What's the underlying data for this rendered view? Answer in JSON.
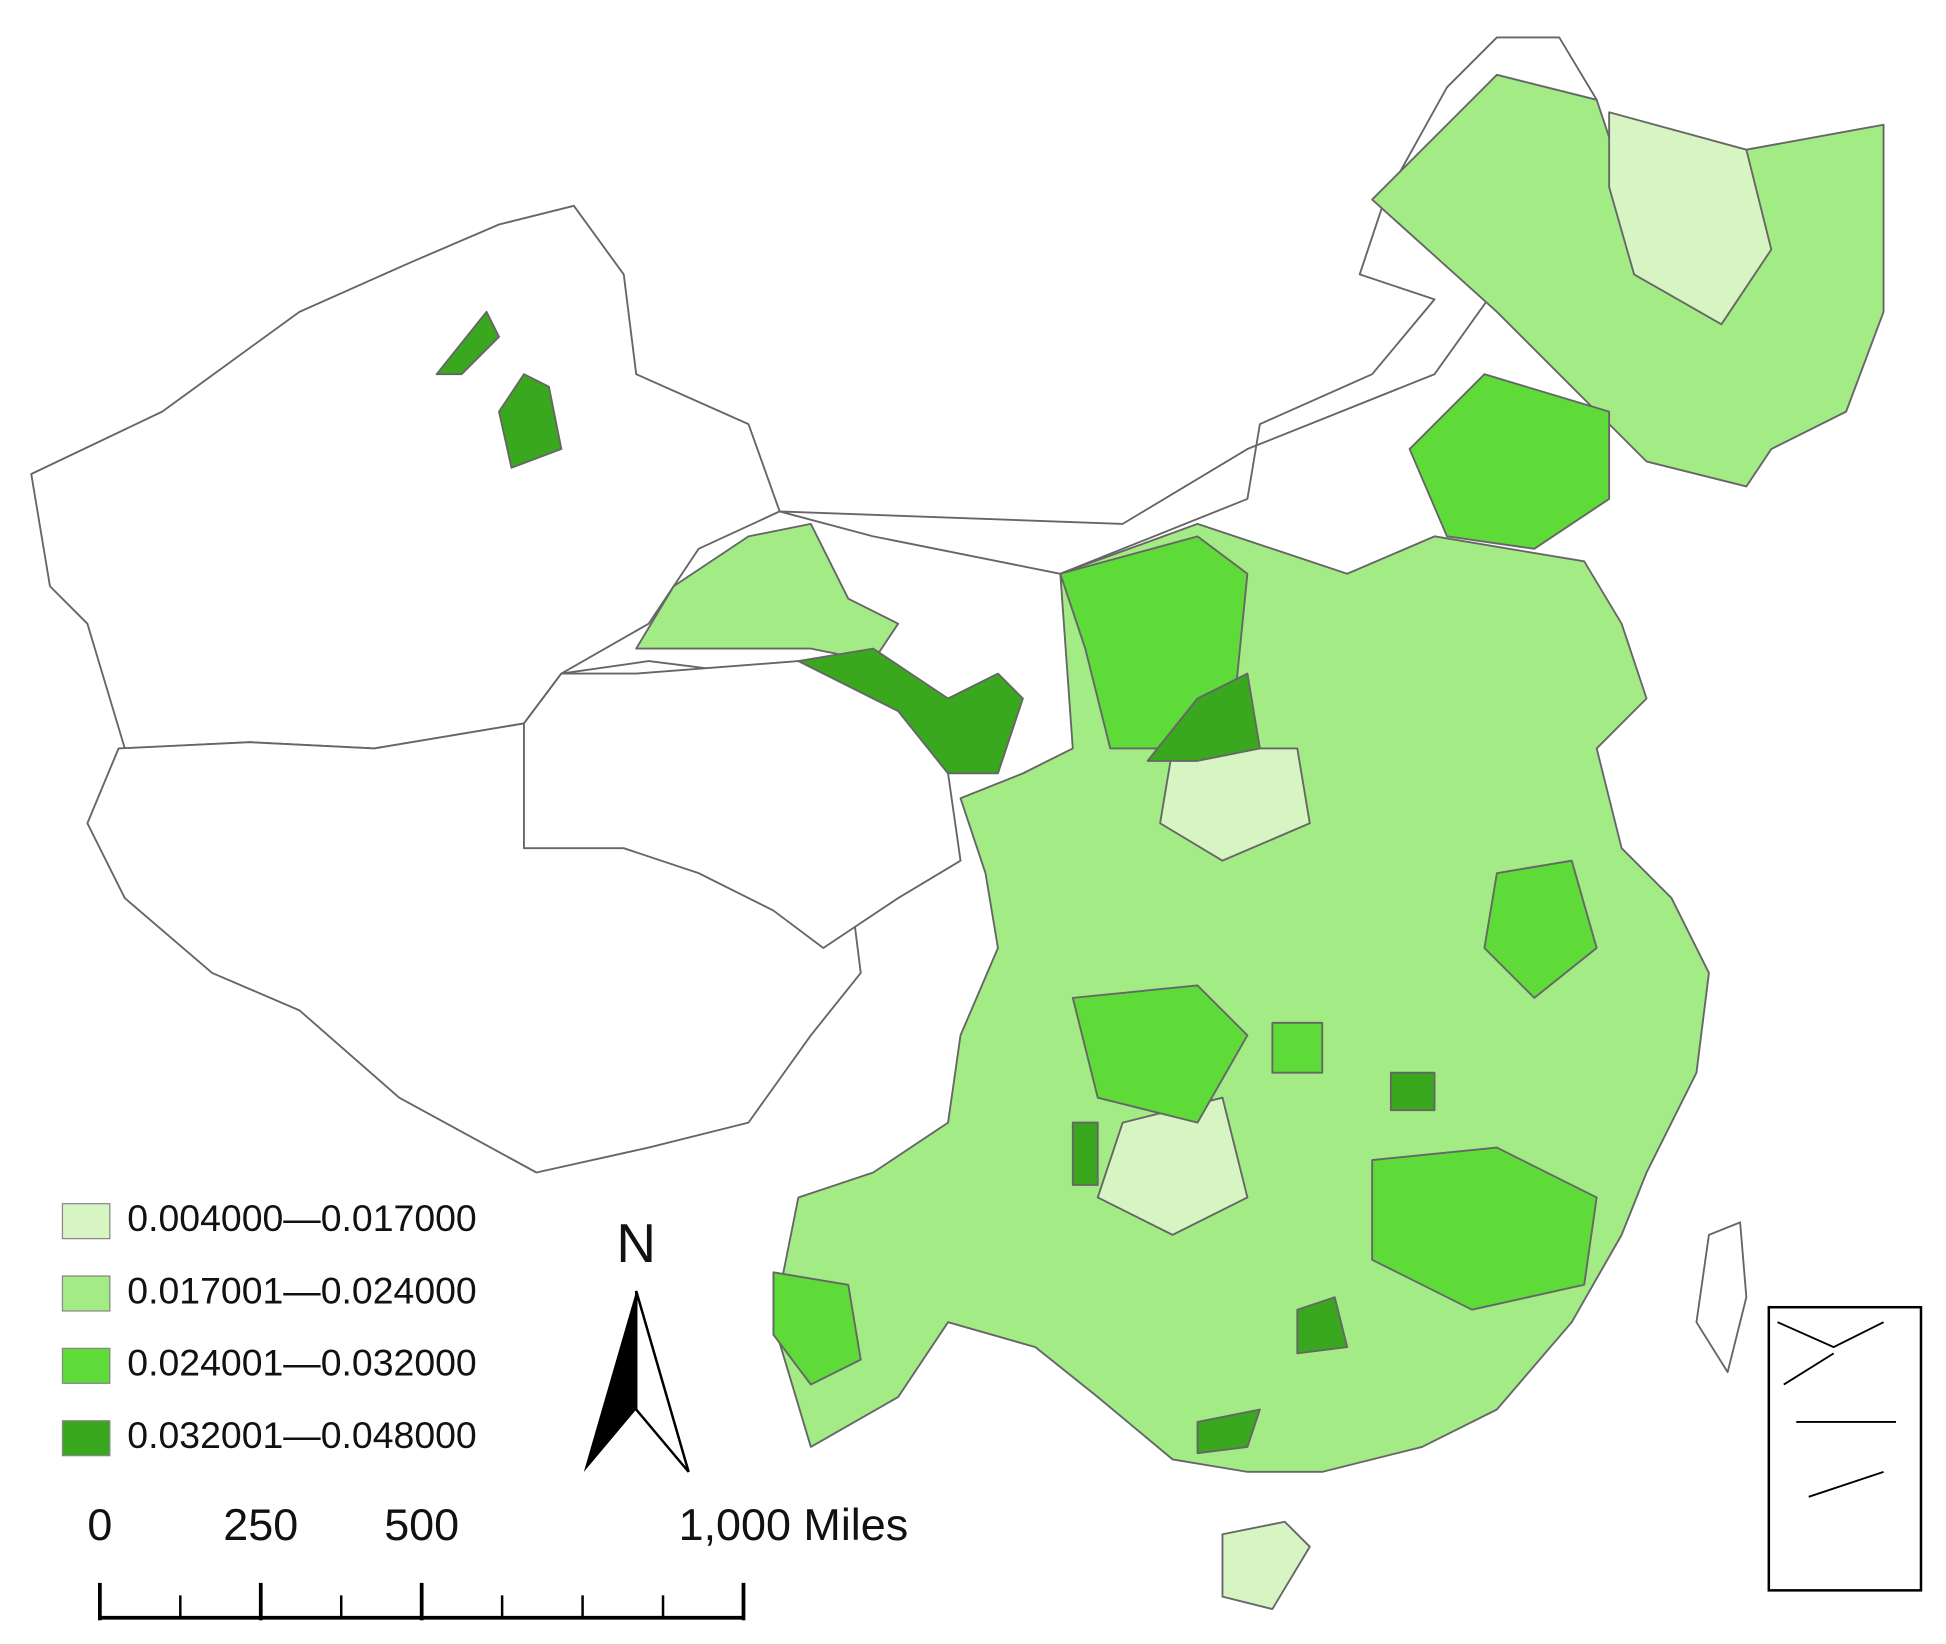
{
  "legend": {
    "items": [
      {
        "label": "0.004000—0.017000",
        "color": "#d6f5c2"
      },
      {
        "label": "0.017001—0.024000",
        "color": "#a3eb85"
      },
      {
        "label": "0.024001—0.032000",
        "color": "#5edb38"
      },
      {
        "label": "0.032001—0.048000",
        "color": "#3aa81f"
      }
    ]
  },
  "north_arrow": {
    "label": "N"
  },
  "scale_bar": {
    "ticks": [
      0,
      250,
      500,
      {
        "value": 1000,
        "label": "1,000 Miles"
      }
    ]
  }
}
